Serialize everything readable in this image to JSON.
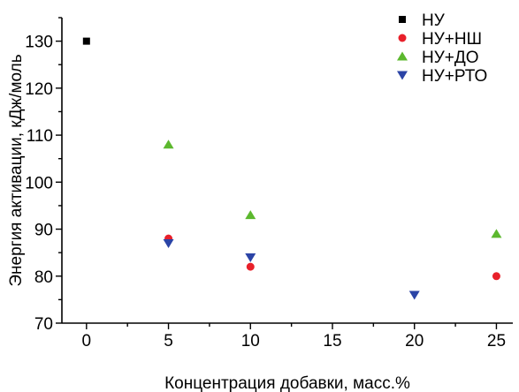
{
  "chart_data": {
    "type": "scatter",
    "xlabel": "Концентрация добавки, масс.%",
    "ylabel": "Энергия активации, кДж/моль",
    "xlim": [
      -1.5,
      26
    ],
    "ylim": [
      70,
      135
    ],
    "xticks": [
      0,
      5,
      10,
      15,
      20,
      25
    ],
    "yticks": [
      70,
      80,
      90,
      100,
      110,
      120,
      130
    ],
    "grid": false,
    "legend_position": "top-right",
    "series": [
      {
        "name": "НУ",
        "marker": "square",
        "color": "#000000",
        "points": [
          {
            "x": 0,
            "y": 130
          }
        ]
      },
      {
        "name": "НУ+НШ",
        "marker": "circle",
        "color": "#e8202a",
        "points": [
          {
            "x": 5,
            "y": 88
          },
          {
            "x": 10,
            "y": 82
          },
          {
            "x": 25,
            "y": 80
          }
        ]
      },
      {
        "name": "НУ+ДО",
        "marker": "triangle-up",
        "color": "#5cb82e",
        "points": [
          {
            "x": 5,
            "y": 108
          },
          {
            "x": 10,
            "y": 93
          },
          {
            "x": 25,
            "y": 89
          }
        ]
      },
      {
        "name": "НУ+РТО",
        "marker": "triangle-down",
        "color": "#2b44a6",
        "points": [
          {
            "x": 5,
            "y": 87
          },
          {
            "x": 10,
            "y": 84
          },
          {
            "x": 20,
            "y": 76
          }
        ]
      }
    ]
  }
}
